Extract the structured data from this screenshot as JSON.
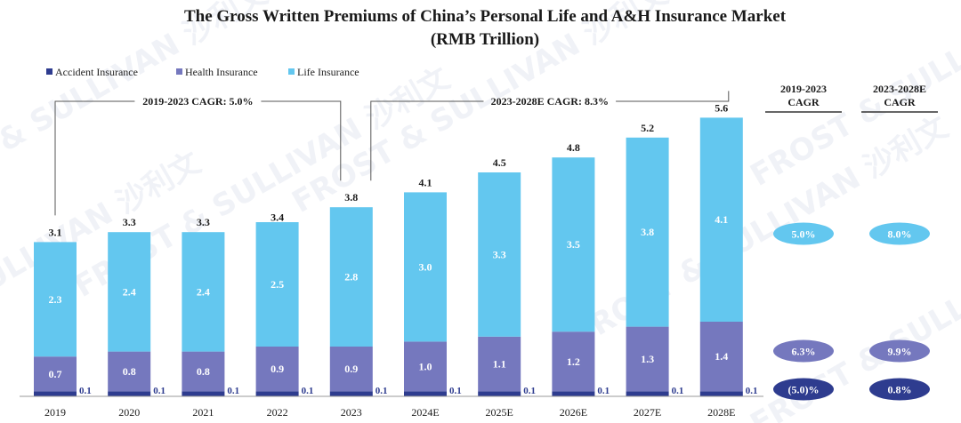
{
  "chart_data": {
    "type": "bar",
    "stacked": true,
    "title": "The Gross Written Premiums of China’s Personal Life and A&H Insurance Market",
    "subtitle": "(RMB Trillion)",
    "categories": [
      "2019",
      "2020",
      "2021",
      "2022",
      "2023",
      "2024E",
      "2025E",
      "2026E",
      "2027E",
      "2028E"
    ],
    "series": [
      {
        "name": "Accident Insurance",
        "color": "#2E3C8F",
        "values": [
          0.1,
          0.1,
          0.1,
          0.1,
          0.1,
          0.1,
          0.1,
          0.1,
          0.1,
          0.1
        ],
        "labels": [
          "0.1",
          "0.1",
          "0.1",
          "0.1",
          "0.1",
          "0.1",
          "0.1",
          "0.1",
          "0.1",
          "0.1"
        ]
      },
      {
        "name": "Health Insurance",
        "color": "#7578BE",
        "values": [
          0.7,
          0.8,
          0.8,
          0.9,
          0.9,
          1.0,
          1.1,
          1.2,
          1.3,
          1.4
        ],
        "labels": [
          "0.7",
          "0.8",
          "0.8",
          "0.9",
          "0.9",
          "1.0",
          "1.1",
          "1.2",
          "1.3",
          "1.4"
        ]
      },
      {
        "name": "Life Insurance",
        "color": "#63C7EF",
        "values": [
          2.3,
          2.4,
          2.4,
          2.5,
          2.8,
          3.0,
          3.3,
          3.5,
          3.8,
          4.1
        ],
        "labels": [
          "2.3",
          "2.4",
          "2.4",
          "2.5",
          "2.8",
          "3.0",
          "3.3",
          "3.5",
          "3.8",
          "4.1"
        ]
      }
    ],
    "totals": [
      3.1,
      3.3,
      3.3,
      3.4,
      3.8,
      4.1,
      4.5,
      4.8,
      5.2,
      5.6
    ],
    "total_labels": [
      "3.1",
      "3.3",
      "3.3",
      "3.4",
      "3.8",
      "4.1",
      "4.5",
      "4.8",
      "5.2",
      "5.6"
    ],
    "ylim": [
      0,
      6
    ],
    "legend_position": "top-left",
    "cagr_brackets": [
      {
        "label": "2019-2023 CAGR: 5.0%",
        "from": "2019",
        "to": "2023"
      },
      {
        "label": "2023-2028E CAGR: 8.3%",
        "from": "2023",
        "to": "2028E"
      }
    ],
    "cagr_table": {
      "headers": [
        "2019-2023 CAGR",
        "2023-2028E CAGR"
      ],
      "rows": [
        {
          "series": "Life Insurance",
          "color": "#63C7EF",
          "values": [
            "5.0%",
            "8.0%"
          ]
        },
        {
          "series": "Health Insurance",
          "color": "#7578BE",
          "values": [
            "6.3%",
            "9.9%"
          ]
        },
        {
          "series": "Accident Insurance",
          "color": "#2E3C8F",
          "values": [
            "(5.0)%",
            "0.8%"
          ]
        }
      ]
    },
    "watermark": "FROST & SULLIVAN 沙利文"
  }
}
